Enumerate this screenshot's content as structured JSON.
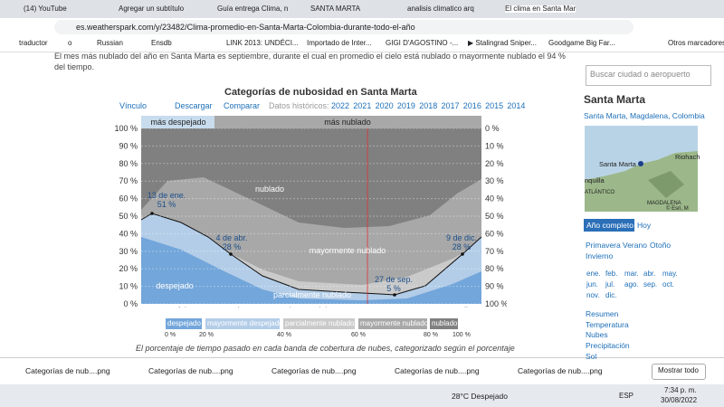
{
  "browser": {
    "tabs": [
      "(14) YouTube",
      "Agregar un subtítulo",
      "Guía entrega Clima, n",
      "SANTA MARTA",
      "analisis climatico arq",
      "El clima en Santa Mar"
    ],
    "url": "es.weatherspark.com/y/23482/Clima-promedio-en-Santa-Marta-Colombia-durante-todo-el-año",
    "bookmarks": [
      "traductor",
      "o",
      "Russian",
      "Ensdb",
      "LINK 2013: UNDÉCI...",
      "Importado de Inter...",
      "GIGI D'AGOSTINO -...",
      "▶ Stalingrad Sniper...",
      "Goodgame Big Far...",
      "Otros marcadores"
    ]
  },
  "article": {
    "intro": "El mes más nublado del año en Santa Marta es septiembre, durante el cual en promedio el cielo está nublado o mayormente nublado el 94 % del tiempo.",
    "chart_title": "Categorías de nubosidad en Santa Marta",
    "links": [
      "Vínculo",
      "Descargar",
      "Comparar"
    ],
    "history_label": "Datos históricos:",
    "years": [
      "2022",
      "2021",
      "2020",
      "2019",
      "2018",
      "2017",
      "2016",
      "2015",
      "2014"
    ],
    "top_labels": [
      "más despejado",
      "más nublado"
    ],
    "left_ticks": [
      "100 %",
      "90 %",
      "80 %",
      "70 %",
      "60 %",
      "50 %",
      "40 %",
      "30 %",
      "20 %",
      "10 %",
      "0 %"
    ],
    "right_ticks": [
      "0 %",
      "10 %",
      "20 %",
      "30 %",
      "40 %",
      "50 %",
      "60 %",
      "70 %",
      "80 %",
      "90 %",
      "100 %"
    ],
    "months": [
      "ene.",
      "feb.",
      "mar.",
      "abr.",
      "may.",
      "jun.",
      "jul.",
      "ago.",
      "sept.",
      "oct.",
      "nov.",
      "dic."
    ],
    "band_labels": [
      "nublado",
      "mayormente nublado",
      "parcialmente nublado",
      "despejado"
    ],
    "annotations": [
      [
        "13 de ene.",
        "51 %"
      ],
      [
        "4 de abr.",
        "28 %"
      ],
      [
        "27 de sep.",
        "5 %"
      ],
      [
        "9 de dic.",
        "28 %"
      ]
    ],
    "legend": [
      "despejado",
      "mayormente despejado",
      "parcialmente nublado",
      "mayormente nublado",
      "nublado"
    ],
    "legend_ticks": [
      "0 %",
      "20 %",
      "40 %",
      "60 %",
      "80 %",
      "100 %"
    ],
    "caption": "El porcentaje de tiempo pasado en cada banda de cobertura de nubes, categorizado según el porcentaje"
  },
  "sidebar": {
    "search": "Buscar ciudad o aeropuerto",
    "city": "Santa Marta",
    "region": "Santa Marta, Magdalena, Colombia",
    "map_labels": [
      "Santa Marta",
      "Riohach",
      "nquilla",
      "ATLÁNTICO",
      "MAGDALENA",
      "© Esri, M"
    ],
    "views": [
      "Año completo",
      "Hoy"
    ],
    "seasons": [
      "Primavera",
      "Verano",
      "Otoño",
      "Invierno"
    ],
    "months": [
      "ene.",
      "feb.",
      "mar.",
      "abr.",
      "may.",
      "jun.",
      "jul.",
      "ago.",
      "sep.",
      "oct.",
      "nov.",
      "dic."
    ],
    "sections": [
      "Resumen",
      "Temperatura",
      "Nubes",
      "Precipitación",
      "Sol"
    ]
  },
  "downloads": {
    "items": [
      "Categorías de nub....png",
      "Categorías de nub....png",
      "Categorías de nub....png",
      "Categorías de nub....png",
      "Categorías de nub....png"
    ],
    "show_all": "Mostrar todo"
  },
  "taskbar": {
    "weather": "28°C  Despejado",
    "lang": "ESP",
    "time": "7:34 p. m.",
    "date": "30/08/2022"
  }
}
